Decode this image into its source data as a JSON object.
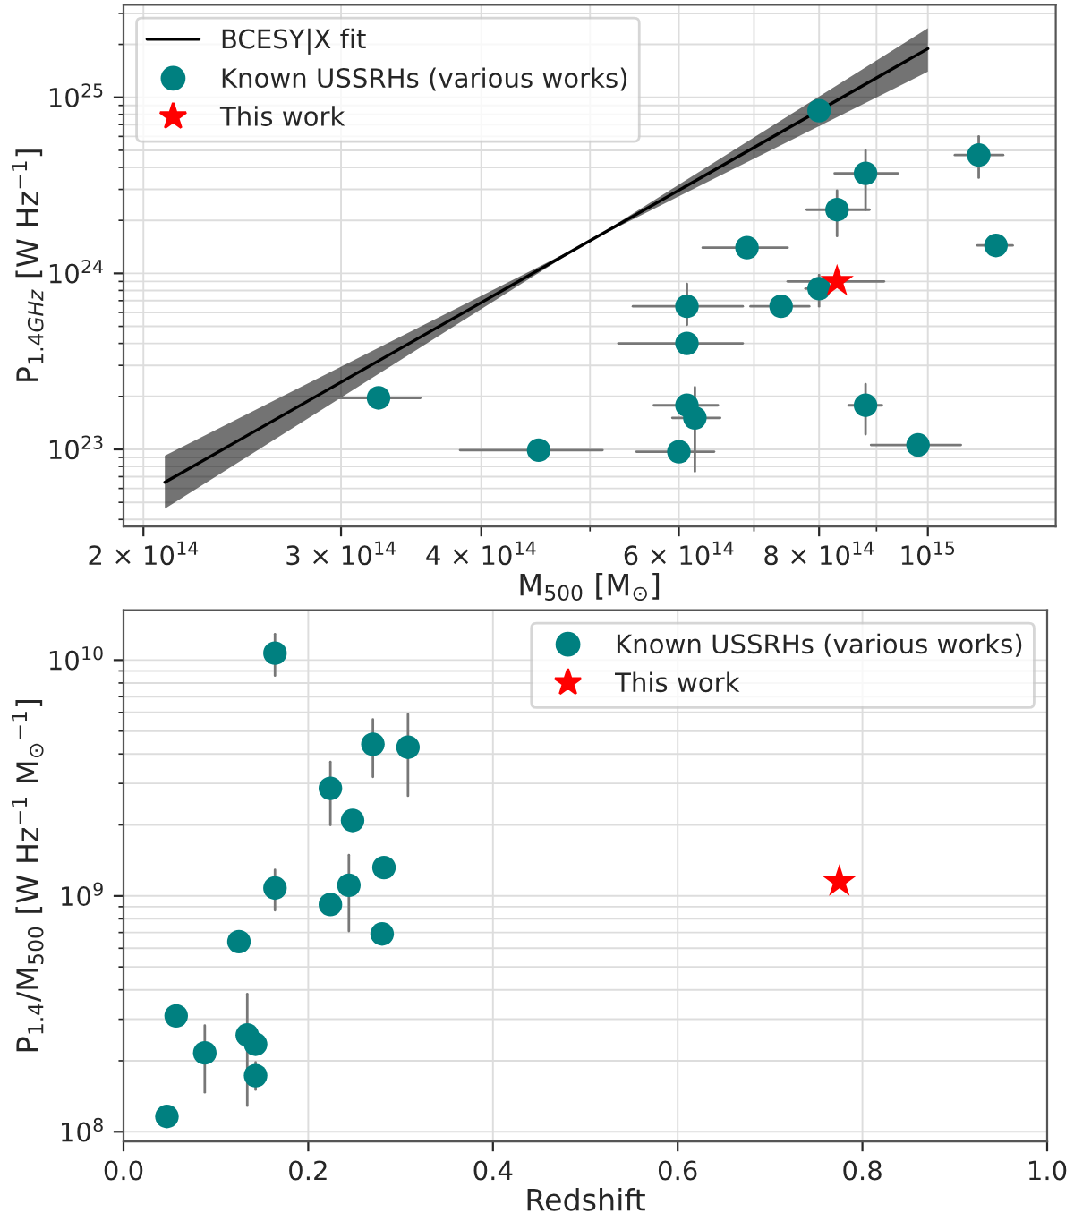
{
  "chart_data": [
    {
      "type": "scatter",
      "xlabel": "M$_{500}$ [M$_{⊙}$]",
      "ylabel": "P$_{1.4GHz}$ [W Hz$^{−1}$]",
      "log": "xy",
      "grid": true,
      "legend": "top left",
      "xlim": [
        192000000000000.0,
        1300000000000000.0
      ],
      "ylim": [
        3.65e+22,
        3.35e+25
      ],
      "xticks": [
        {
          "value": 200000000000000.0,
          "label": "2 × 10$^{14}$"
        },
        {
          "value": 300000000000000.0,
          "label": "3 × 10$^{14}$"
        },
        {
          "value": 400000000000000.0,
          "label": "4 × 10$^{14}$"
        },
        {
          "value": 600000000000000.0,
          "label": "6 × 10$^{14}$"
        },
        {
          "value": 800000000000000.0,
          "label": "8 × 10$^{14}$"
        },
        {
          "value": 1000000000000000.0,
          "label": "10$^{15}$"
        }
      ],
      "yticks": [
        {
          "value": 1e+23,
          "label": "10$^{23}$"
        },
        {
          "value": 1e+24,
          "label": "10$^{24}$"
        },
        {
          "value": 1e+25,
          "label": "10$^{25}$"
        }
      ],
      "series": [
        {
          "type": "line",
          "name": "BCESY|X fit",
          "color": "#000000",
          "x": [
            209000000000000.0,
            497000000000000.0,
            1000000000000000.0
          ],
          "values": [
            6.5e+22,
            1.5e+24,
            1.89e+25
          ],
          "lower": [
            4.6e+22,
            1.5e+24,
            1.4e+25
          ],
          "upper": [
            9.2e+22,
            1.5e+24,
            2.47e+25
          ]
        },
        {
          "type": "scatter",
          "name": "Known USSRHs (various works)",
          "color": "#008080",
          "marker": "circle",
          "x": [
            800000000000000.0,
            1110000000000000.0,
            880000000000000.0,
            830000000000000.0,
            1150000000000000.0,
            690000000000000.0,
            800000000000000.0,
            740000000000000.0,
            610000000000000.0,
            610000000000000.0,
            324000000000000.0,
            610000000000000.0,
            620000000000000.0,
            880000000000000.0,
            450000000000000.0,
            600000000000000.0,
            980000000000000.0
          ],
          "values": [
            8.4e+24,
            4.7e+24,
            3.7e+24,
            2.3e+24,
            1.44e+24,
            1.4e+24,
            8.2e+23,
            6.5e+23,
            6.5e+23,
            4e+23,
            1.96e+23,
            1.78e+23,
            1.51e+23,
            1.78e+23,
            9.9e+22,
            9.7e+22,
            1.06e+23
          ],
          "xerrors": [
            null,
            [
              1057000000000000.0,
              1167000000000000.0
            ],
            [
              826000000000000.0,
              940000000000000.0
            ],
            [
              780000000000000.0,
              887000000000000.0
            ],
            [
              1107000000000000.0,
              1190000000000000.0
            ],
            [
              630000000000000.0,
              750000000000000.0
            ],
            [
              778000000000000.0,
              813000000000000.0
            ],
            [
              695000000000000.0,
              784000000000000.0
            ],
            [
              546000000000000.0,
              684000000000000.0
            ],
            [
              530000000000000.0,
              684000000000000.0
            ],
            [
              294000000000000.0,
              353000000000000.0
            ],
            [
              570000000000000.0,
              650000000000000.0
            ],
            [
              592000000000000.0,
              653000000000000.0
            ],
            [
              850000000000000.0,
              910000000000000.0
            ],
            [
              383000000000000.0,
              513000000000000.0
            ],
            [
              550000000000000.0,
              645000000000000.0
            ],
            [
              890000000000000.0,
              1070000000000000.0
            ]
          ],
          "errors": [
            [
              7e+24,
              9.8e+24
            ],
            [
              3.5e+24,
              6e+24
            ],
            [
              2.3e+24,
              5e+24
            ],
            [
              1.63e+24,
              2.95e+24
            ],
            null,
            null,
            [
              6.5e+23,
              9.8e+23
            ],
            null,
            [
              5.1e+23,
              8.7e+23
            ],
            null,
            null,
            null,
            [
              7.5e+22,
              2.25e+23
            ],
            [
              1.22e+23,
              2.35e+23
            ],
            null,
            null,
            null
          ]
        },
        {
          "type": "scatter",
          "name": "This work",
          "color": "#ff0000",
          "marker": "star",
          "x": [
            830000000000000.0
          ],
          "values": [
            9e+23
          ],
          "xerrors": [
            [
              750000000000000.0,
              914000000000000.0
            ]
          ]
        }
      ]
    },
    {
      "type": "scatter",
      "xlabel": "Redshift",
      "ylabel": "P$_{1.4}$/M$_{500}$ [W Hz$^{−1}$ M$_{⊙}$$^{−1}$]",
      "log": "y",
      "grid": true,
      "legend": "top right",
      "xlim": [
        0.0,
        1.0
      ],
      "ylim": [
        91000000.0,
        16300000000.0
      ],
      "xticks": [
        {
          "value": 0.0,
          "label": "0.0"
        },
        {
          "value": 0.2,
          "label": "0.2"
        },
        {
          "value": 0.4,
          "label": "0.4"
        },
        {
          "value": 0.6,
          "label": "0.6"
        },
        {
          "value": 0.8,
          "label": "0.8"
        },
        {
          "value": 1.0,
          "label": "1.0"
        }
      ],
      "yticks": [
        {
          "value": 100000000.0,
          "label": "10$^{8}$"
        },
        {
          "value": 1000000000.0,
          "label": "10$^{9}$"
        },
        {
          "value": 10000000000.0,
          "label": "10$^{10}$"
        }
      ],
      "series": [
        {
          "type": "scatter",
          "name": "Known USSRHs (various works)",
          "color": "#008080",
          "marker": "circle",
          "x": [
            0.164,
            0.27,
            0.308,
            0.224,
            0.248,
            0.282,
            0.164,
            0.244,
            0.224,
            0.28,
            0.125,
            0.057,
            0.134,
            0.143,
            0.088,
            0.143,
            0.047
          ],
          "values": [
            10700000000.0,
            4400000000.0,
            4270000000.0,
            2860000000.0,
            2090000000.0,
            1320000000.0,
            1080000000.0,
            1110000000.0,
            920000000.0,
            690000000.0,
            640000000.0,
            310000000.0,
            257000000.0,
            235000000.0,
            216000000.0,
            173000000.0,
            116000000.0
          ],
          "errors": [
            [
              8600000000.0,
              12900000000.0
            ],
            [
              3200000000.0,
              5600000000.0
            ],
            [
              2660000000.0,
              5900000000.0
            ],
            [
              2000000000.0,
              3700000000.0
            ],
            null,
            null,
            [
              870000000.0,
              1290000000.0
            ],
            [
              710000000.0,
              1490000000.0
            ],
            null,
            null,
            null,
            null,
            [
              129000000.0,
              384000000.0
            ],
            null,
            [
              147000000.0,
              282000000.0
            ],
            [
              151000000.0,
              197000000.0
            ],
            null
          ]
        },
        {
          "type": "scatter",
          "name": "This work",
          "color": "#ff0000",
          "marker": "star",
          "x": [
            0.775
          ],
          "values": [
            1150000000.0
          ]
        }
      ]
    }
  ]
}
